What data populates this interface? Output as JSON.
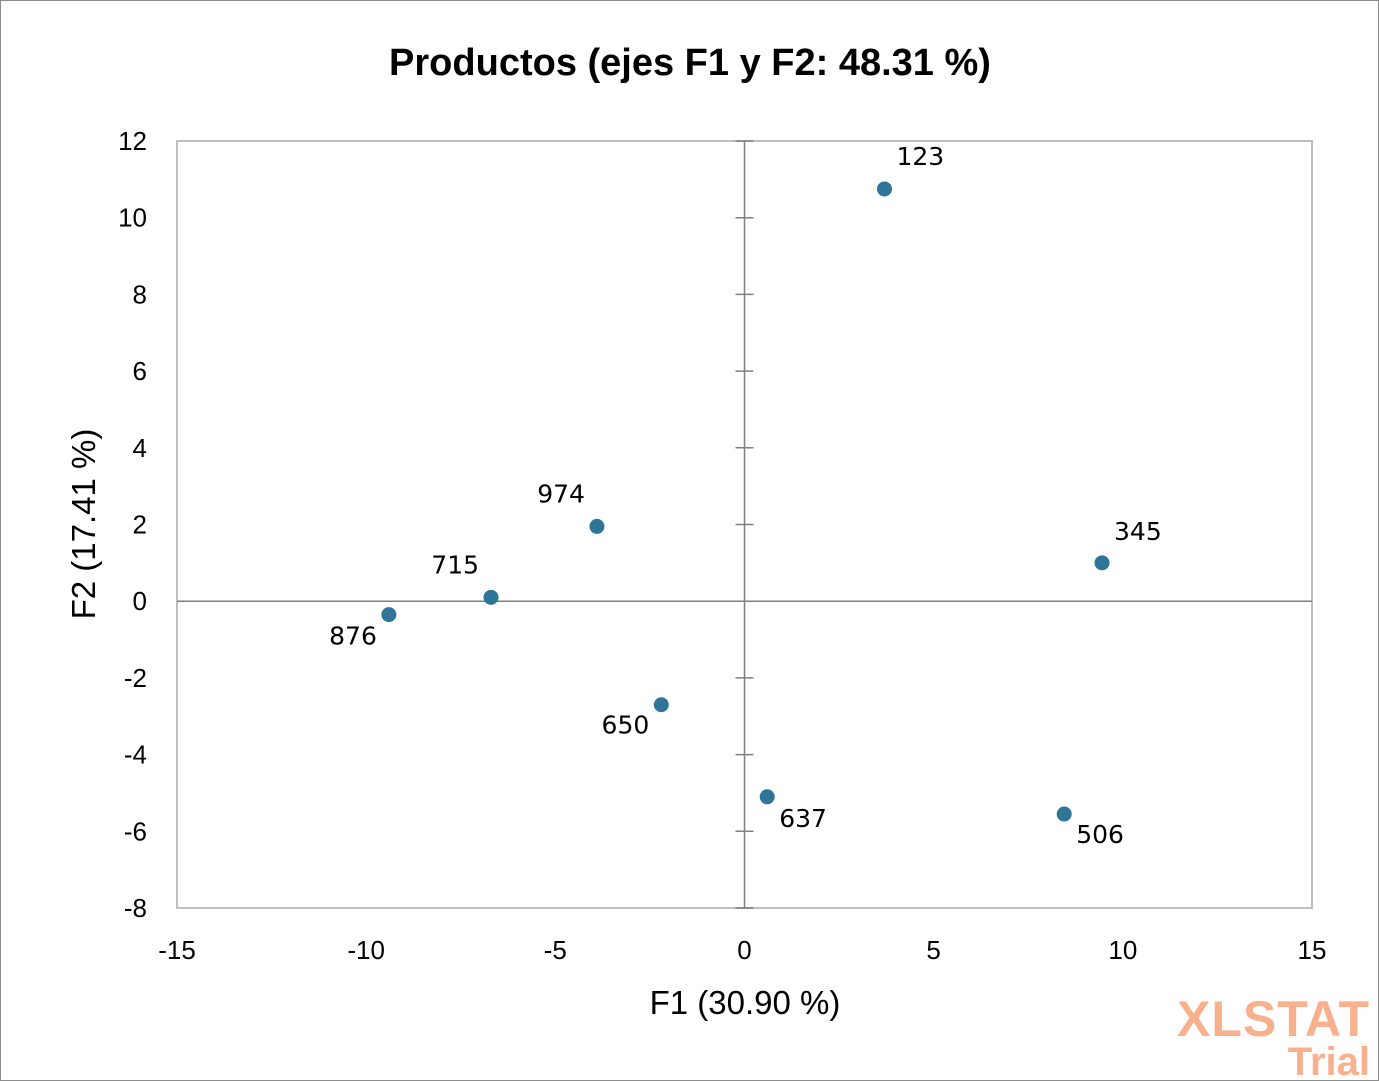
{
  "chart_data": {
    "type": "scatter",
    "title": "Productos (ejes F1 y F2: 48.31 %)",
    "xlabel": "F1 (30.90 %)",
    "ylabel": "F2 (17.41 %)",
    "xlim": [
      -15,
      15
    ],
    "ylim": [
      -8,
      12
    ],
    "xticks": [
      -15,
      -10,
      -5,
      0,
      5,
      10,
      15
    ],
    "yticks": [
      -8,
      -6,
      -4,
      -2,
      0,
      2,
      4,
      6,
      8,
      10,
      12
    ],
    "grid": false,
    "marker_color": "#2e7598",
    "points": [
      {
        "label": "123",
        "x": 3.7,
        "y": 10.75
      },
      {
        "label": "345",
        "x": 9.45,
        "y": 1.0
      },
      {
        "label": "974",
        "x": -3.9,
        "y": 1.95
      },
      {
        "label": "715",
        "x": -6.7,
        "y": 0.1
      },
      {
        "label": "876",
        "x": -9.4,
        "y": -0.35
      },
      {
        "label": "650",
        "x": -2.2,
        "y": -2.7
      },
      {
        "label": "637",
        "x": 0.6,
        "y": -5.1
      },
      {
        "label": "506",
        "x": 8.45,
        "y": -5.55
      }
    ]
  },
  "watermark": {
    "brand": "XLSTAT",
    "edition": "Trial",
    "color": "#f9b08c"
  }
}
